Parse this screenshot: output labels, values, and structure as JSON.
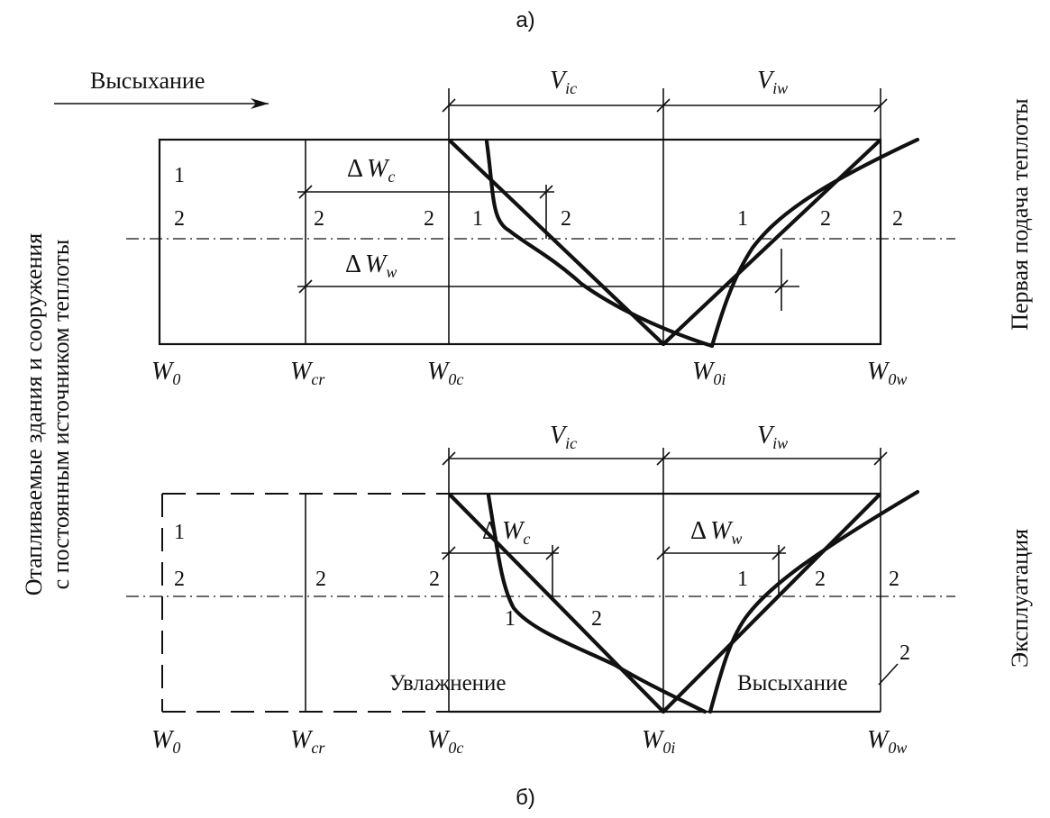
{
  "caption_top": "а)",
  "caption_bottom": "б)",
  "arrow_label": "Высыхание",
  "left_side_label": {
    "line1": "Отапливаемые здания и сооружения",
    "line2": "с постоянным источником теплоты"
  },
  "right_label_top": "Первая подача теплоты",
  "right_label_bottom": "Эксплуатация",
  "panel_a": {
    "v_ic": {
      "main": "V",
      "sub": "ic"
    },
    "v_iw": {
      "main": "V",
      "sub": "iw"
    },
    "dwc": {
      "delta": "Δ",
      "main": "W",
      "sub": "c"
    },
    "dww": {
      "delta": "Δ",
      "main": "W",
      "sub": "w"
    },
    "axis": [
      {
        "main": "W",
        "sub": "0"
      },
      {
        "main": "W",
        "sub": "cr"
      },
      {
        "main": "W",
        "sub": "0c"
      },
      {
        "main": "W",
        "sub": "0i"
      },
      {
        "main": "W",
        "sub": "0w"
      }
    ],
    "zone_labels": {
      "one": "1",
      "two": "2"
    }
  },
  "panel_b": {
    "v_ic": {
      "main": "V",
      "sub": "ic"
    },
    "v_iw": {
      "main": "V",
      "sub": "iw"
    },
    "dwc": {
      "delta": "Δ",
      "main": "W",
      "sub": "c"
    },
    "dww": {
      "delta": "Δ",
      "main": "W",
      "sub": "w"
    },
    "wetting": "Увлажнение",
    "drying": "Высыхание",
    "axis": [
      {
        "main": "W",
        "sub": "0"
      },
      {
        "main": "W",
        "sub": "cr"
      },
      {
        "main": "W",
        "sub": "0c"
      },
      {
        "main": "W",
        "sub": "0i"
      },
      {
        "main": "W",
        "sub": "0w"
      }
    ],
    "zone_labels": {
      "one": "1",
      "two": "2"
    }
  }
}
